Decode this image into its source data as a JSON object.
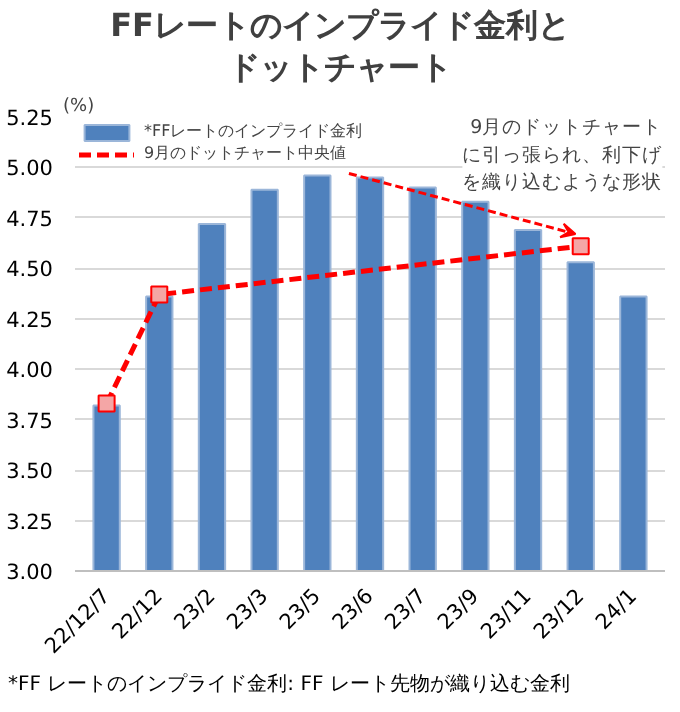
{
  "chart_data": {
    "type": "bar",
    "title": "FFレートのインプライド金利とドットチャート",
    "ylabel": "(%)",
    "categories": [
      "22/12/7",
      "22/12",
      "23/2",
      "23/3",
      "23/5",
      "23/6",
      "23/7",
      "23/9",
      "23/11",
      "23/12",
      "24/1"
    ],
    "series": [
      {
        "name": "*FFレートのインプライド金利",
        "color": "#4f81bd",
        "values": [
          3.82,
          4.36,
          4.72,
          4.89,
          4.96,
          4.95,
          4.9,
          4.83,
          4.69,
          4.53,
          4.36
        ]
      },
      {
        "name": "9月のドットチャート中央値",
        "type": "line",
        "color": "#ff0000",
        "x": [
          "22/12/7",
          "22/12",
          "23/12"
        ],
        "values": [
          3.83,
          4.37,
          4.61
        ],
        "marker": "square",
        "line_style": "dashed"
      }
    ],
    "ylim": [
      3,
      5.25
    ],
    "yticks": [
      {
        "value": 3,
        "label": "3.00"
      },
      {
        "value": 3.25,
        "label": "3.25"
      },
      {
        "value": 3.5,
        "label": "3.50"
      },
      {
        "value": 3.75,
        "label": "3.75"
      },
      {
        "value": 4,
        "label": "4.00"
      },
      {
        "value": 4.25,
        "label": "4.25"
      },
      {
        "value": 4.5,
        "label": "4.50"
      },
      {
        "value": 4.75,
        "label": "4.75"
      },
      {
        "value": 5,
        "label": "5.00"
      },
      {
        "value": 5.25,
        "label": "5.25"
      }
    ],
    "grid": "y",
    "legend": "top left",
    "annotations": [
      {
        "text": "9月のドットチャートに引っ張られ、利下げを織り込むような形状",
        "x": "23/12",
        "y": 4.67
      },
      "*FF レートのインプライド金利: FF レート先物が織り込む金利"
    ]
  }
}
